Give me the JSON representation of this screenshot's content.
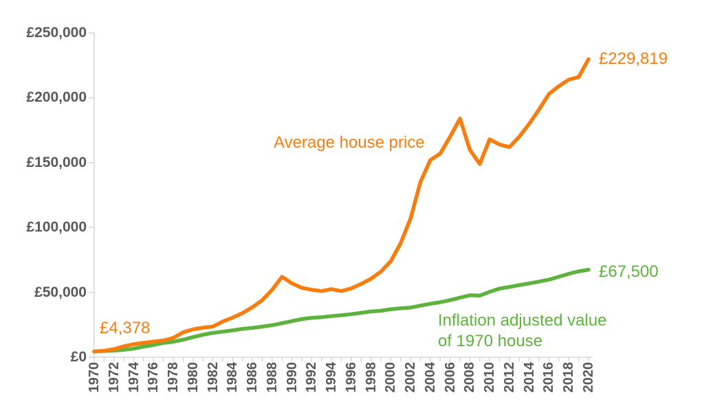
{
  "chart_data": {
    "type": "line",
    "grid": false,
    "legend": "none",
    "x": [
      1970,
      1971,
      1972,
      1973,
      1974,
      1975,
      1976,
      1977,
      1978,
      1979,
      1980,
      1981,
      1982,
      1983,
      1984,
      1985,
      1986,
      1987,
      1988,
      1989,
      1990,
      1991,
      1992,
      1993,
      1994,
      1995,
      1996,
      1997,
      1998,
      1999,
      2000,
      2001,
      2002,
      2003,
      2004,
      2005,
      2006,
      2007,
      2008,
      2009,
      2010,
      2011,
      2012,
      2013,
      2014,
      2015,
      2016,
      2017,
      2018,
      2019,
      2020
    ],
    "series": [
      {
        "name": "Inflation adjusted value of 1970 house",
        "color": "#5DB33D",
        "end_value_label": "£67,500",
        "values": [
          4378,
          4800,
          5150,
          5700,
          6600,
          8200,
          9500,
          11000,
          11900,
          13500,
          15500,
          17300,
          18800,
          19700,
          20700,
          21900,
          22600,
          23600,
          24700,
          26200,
          27800,
          29400,
          30400,
          30900,
          31700,
          32400,
          33200,
          34200,
          35300,
          35800,
          37000,
          37700,
          38300,
          39800,
          41200,
          42400,
          44000,
          45900,
          47800,
          47500,
          50400,
          52900,
          54200,
          55600,
          56900,
          58300,
          59800,
          62000,
          64300,
          66200,
          67500
        ]
      },
      {
        "name": "Average house price",
        "color": "#F87D0E",
        "start_value_label": "£4,378",
        "end_value_label": "£229,819",
        "values": [
          4378,
          5000,
          6200,
          8400,
          10000,
          11100,
          12100,
          12900,
          14900,
          19200,
          21500,
          22800,
          23600,
          27500,
          30500,
          34000,
          38500,
          44000,
          52000,
          62000,
          57000,
          53500,
          52000,
          51000,
          52500,
          51000,
          53000,
          56500,
          60500,
          66000,
          74000,
          88000,
          107000,
          135000,
          152000,
          157000,
          170000,
          184000,
          160000,
          149000,
          168000,
          164000,
          162000,
          170000,
          180000,
          191000,
          203000,
          209000,
          214000,
          216000,
          229819
        ]
      }
    ],
    "y_axis": {
      "range": [
        0,
        250000
      ],
      "ticks": [
        {
          "value": 0,
          "label": "£0"
        },
        {
          "value": 50000,
          "label": "£50,000"
        },
        {
          "value": 100000,
          "label": "£100,000"
        },
        {
          "value": 150000,
          "label": "£150,000"
        },
        {
          "value": 200000,
          "label": "£200,000"
        },
        {
          "value": 250000,
          "label": "£250,000"
        }
      ]
    },
    "x_axis": {
      "range": [
        1970,
        2020
      ],
      "minor_tick_every_years": 1,
      "tick_labels": [
        "1970",
        "1972",
        "1974",
        "1976",
        "1978",
        "1980",
        "1982",
        "1984",
        "1986",
        "1988",
        "1990",
        "1992",
        "1994",
        "1996",
        "1998",
        "2000",
        "2002",
        "2004",
        "2006",
        "2008",
        "2010",
        "2012",
        "2014",
        "2016",
        "2018",
        "2020"
      ]
    },
    "annotations": [
      {
        "id": "start-value",
        "text": "£4,378",
        "color": "#F87D0E"
      },
      {
        "id": "orange-series-label",
        "text": "Average house price",
        "color": "#F87D0E"
      },
      {
        "id": "orange-end-value",
        "text": "£229,819",
        "color": "#F87D0E"
      },
      {
        "id": "green-end-value",
        "text": "£67,500",
        "color": "#5DB33D"
      },
      {
        "id": "green-series-label",
        "text": "Inflation adjusted value\nof 1970 house",
        "color": "#5DB33D"
      }
    ],
    "axis_color": "#D6D6D6",
    "tick_text_color": "#595959"
  }
}
